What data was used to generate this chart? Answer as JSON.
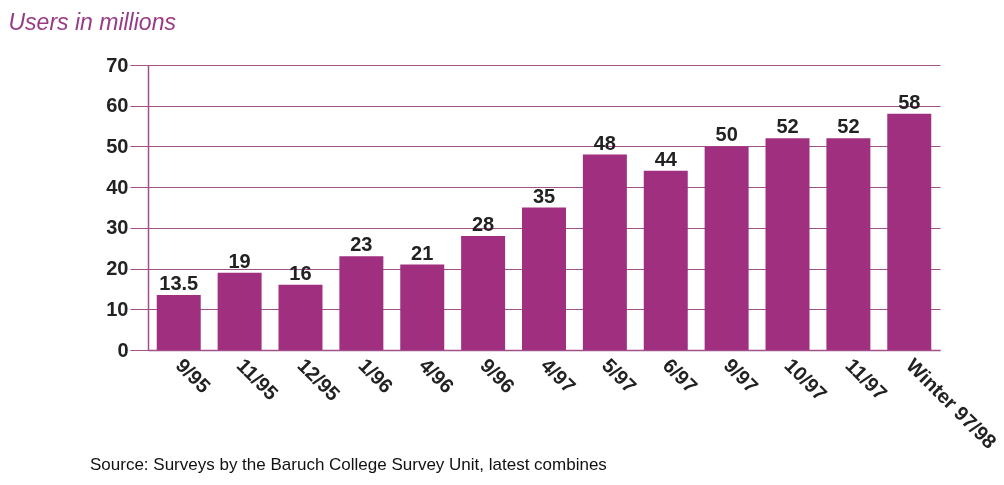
{
  "chart_data": {
    "type": "bar",
    "ylabel": "Users in millions",
    "categories": [
      "9/95",
      "11/95",
      "12/95",
      "1/96",
      "4/96",
      "9/96",
      "4/97",
      "5/97",
      "6/97",
      "9/97",
      "10/97",
      "11/97",
      "Winter 97/98"
    ],
    "values": [
      13.5,
      19,
      16,
      23,
      21,
      28,
      35,
      48,
      44,
      50,
      52,
      52,
      58
    ],
    "color": "#a12f7f",
    "ylim": [
      0,
      70
    ],
    "yticks": [
      0,
      10,
      20,
      30,
      40,
      50,
      60,
      70
    ],
    "grid": "y",
    "data_labels": true,
    "annotations": [
      "Source: Surveys by the Baruch College Survey Unit, latest combines"
    ]
  }
}
